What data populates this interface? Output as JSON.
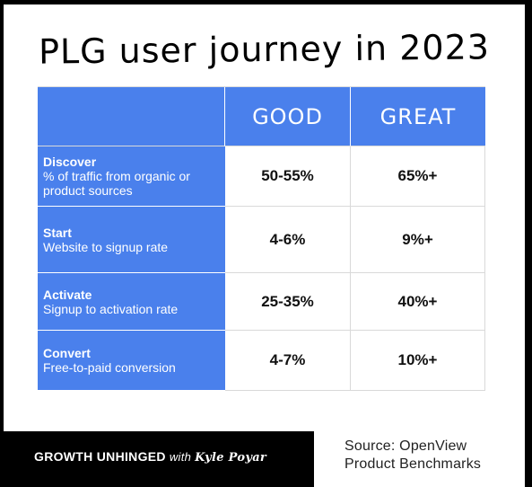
{
  "title": "PLG user journey in 2023",
  "table": {
    "headers": [
      "",
      "GOOD",
      "GREAT"
    ],
    "rows": [
      {
        "name": "Discover",
        "desc": "% of traffic from organic or product sources",
        "good": "50-55%",
        "great": "65%+"
      },
      {
        "name": "Start",
        "desc": "Website to signup rate",
        "good": "4-6%",
        "great": "9%+"
      },
      {
        "name": "Activate",
        "desc": "Signup to activation rate",
        "good": "25-35%",
        "great": "40%+"
      },
      {
        "name": "Convert",
        "desc": "Free-to-paid conversion",
        "good": "4-7%",
        "great": "10%+"
      }
    ]
  },
  "footer": {
    "brand": "GROWTH UNHINGED",
    "with": "with",
    "author": "Kyle Poyar",
    "source_line1": "Source: OpenView",
    "source_line2": "Product Benchmarks"
  },
  "colors": {
    "header_blue": "#4a80ec",
    "background": "#000000"
  }
}
